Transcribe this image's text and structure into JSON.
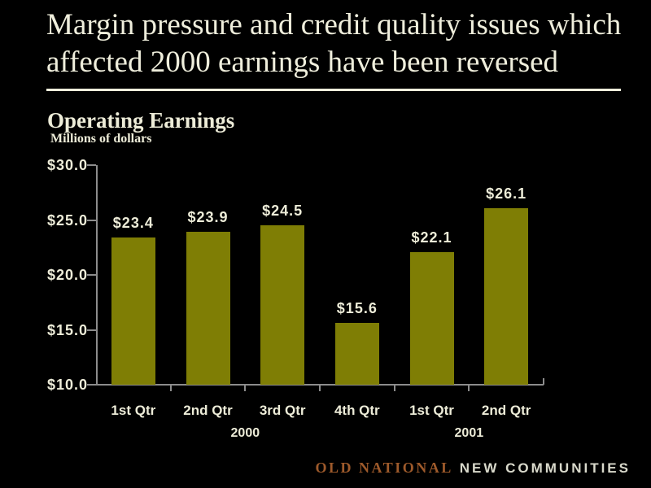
{
  "slide": {
    "title_line1": "Margin pressure and credit quality issues which",
    "title_line2": "affected 2000 earnings have been reversed",
    "subtitle": "Operating Earnings",
    "units_label": "Millions of dollars"
  },
  "chart_data": {
    "type": "bar",
    "title": "Operating Earnings",
    "ylabel": "Millions of dollars",
    "categories": [
      "1st Qtr",
      "2nd Qtr",
      "3rd Qtr",
      "4th Qtr",
      "1st Qtr",
      "2nd Qtr"
    ],
    "values": [
      23.4,
      23.9,
      24.5,
      15.6,
      22.1,
      26.1
    ],
    "data_labels": [
      "$23.4",
      "$23.9",
      "$24.5",
      "$15.6",
      "$22.1",
      "$26.1"
    ],
    "group_labels": [
      {
        "label": "2000",
        "span": [
          0,
          3
        ]
      },
      {
        "label": "2001",
        "span": [
          4,
          5
        ]
      }
    ],
    "ylim": [
      10,
      30
    ],
    "yticks": [
      {
        "value": 30,
        "label": "$30.0"
      },
      {
        "value": 25,
        "label": "$25.0"
      },
      {
        "value": 20,
        "label": "$20.0"
      },
      {
        "value": 15,
        "label": "$15.0"
      },
      {
        "value": 10,
        "label": "$10.0"
      }
    ],
    "grid": false,
    "legend": "none",
    "bar_color": "#7F7E05",
    "axis_color": "#8C8C8C",
    "label_color": "#EDECD8"
  },
  "footer": {
    "brand_primary": "OLD NATIONAL",
    "brand_secondary": "NEW COMMUNITIES",
    "brand_primary_color": "#9E5A2B",
    "brand_secondary_color": "#D9D9CB"
  },
  "colors": {
    "background": "#000000",
    "text": "#EFEEDC"
  }
}
